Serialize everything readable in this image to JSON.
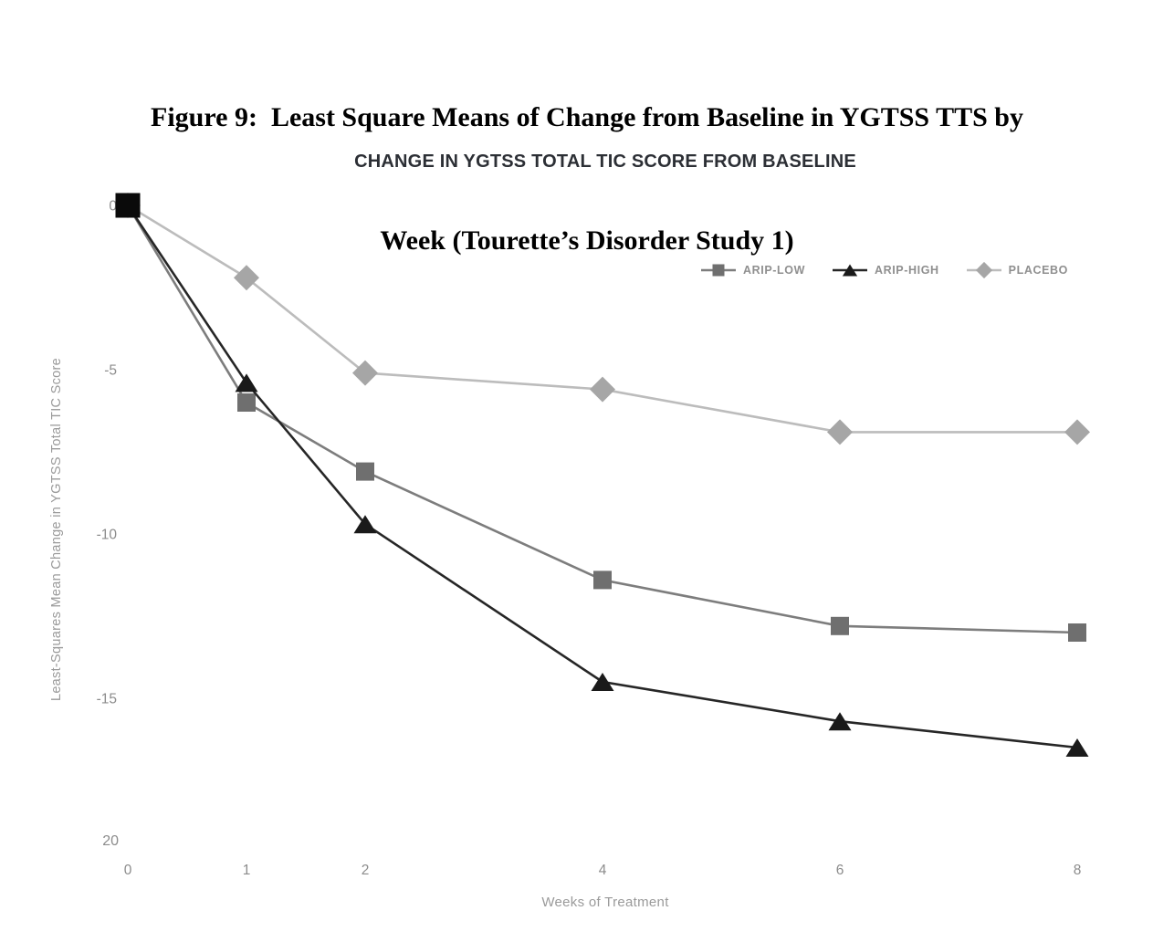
{
  "figure": {
    "heading_line1": "Figure 9:  Least Square Means of Change from Baseline in YGTSS TTS by",
    "heading_line2": "Week (Tourette’s Disorder Study 1)"
  },
  "chart_data": {
    "type": "line",
    "title": "CHANGE IN YGTSS TOTAL TIC SCORE FROM BASELINE",
    "xlabel": "Weeks of Treatment",
    "ylabel": "Least-Squares Mean Change in YGTSS Total TIC Score",
    "x": [
      0,
      1,
      2,
      4,
      6,
      8
    ],
    "x_tick_labels": [
      "0",
      "1",
      "2",
      "4",
      "6",
      "8"
    ],
    "y_ticks": [
      0,
      -5,
      -10,
      -15
    ],
    "y_tick_labels": [
      "0",
      "-5",
      "-10",
      "-15"
    ],
    "y_axis_bottom_label": "20",
    "ylim": [
      -20,
      0.5
    ],
    "xlim": [
      0,
      8
    ],
    "grid": false,
    "legend_position": "inside-upper-right",
    "series": [
      {
        "name": "ARIP-LOW",
        "marker": "square",
        "marker_color": "#6f6f6f",
        "line_color": "#7d7d7d",
        "values": [
          0,
          -6.0,
          -8.1,
          -11.4,
          -12.8,
          -13.0
        ]
      },
      {
        "name": "ARIP-HIGH",
        "marker": "triangle",
        "marker_color": "#1a1a1a",
        "line_color": "#262626",
        "values": [
          0,
          -5.4,
          -9.7,
          -14.5,
          -15.7,
          -16.5
        ]
      },
      {
        "name": "PLACEBO",
        "marker": "diamond",
        "marker_color": "#a6a6a6",
        "line_color": "#bcbcbc",
        "values": [
          0,
          -2.2,
          -5.1,
          -5.6,
          -6.9,
          -6.9
        ]
      }
    ],
    "draw_order": [
      2,
      0,
      1
    ],
    "origin_marker": {
      "shape": "square",
      "color": "#0a0a0a"
    }
  }
}
